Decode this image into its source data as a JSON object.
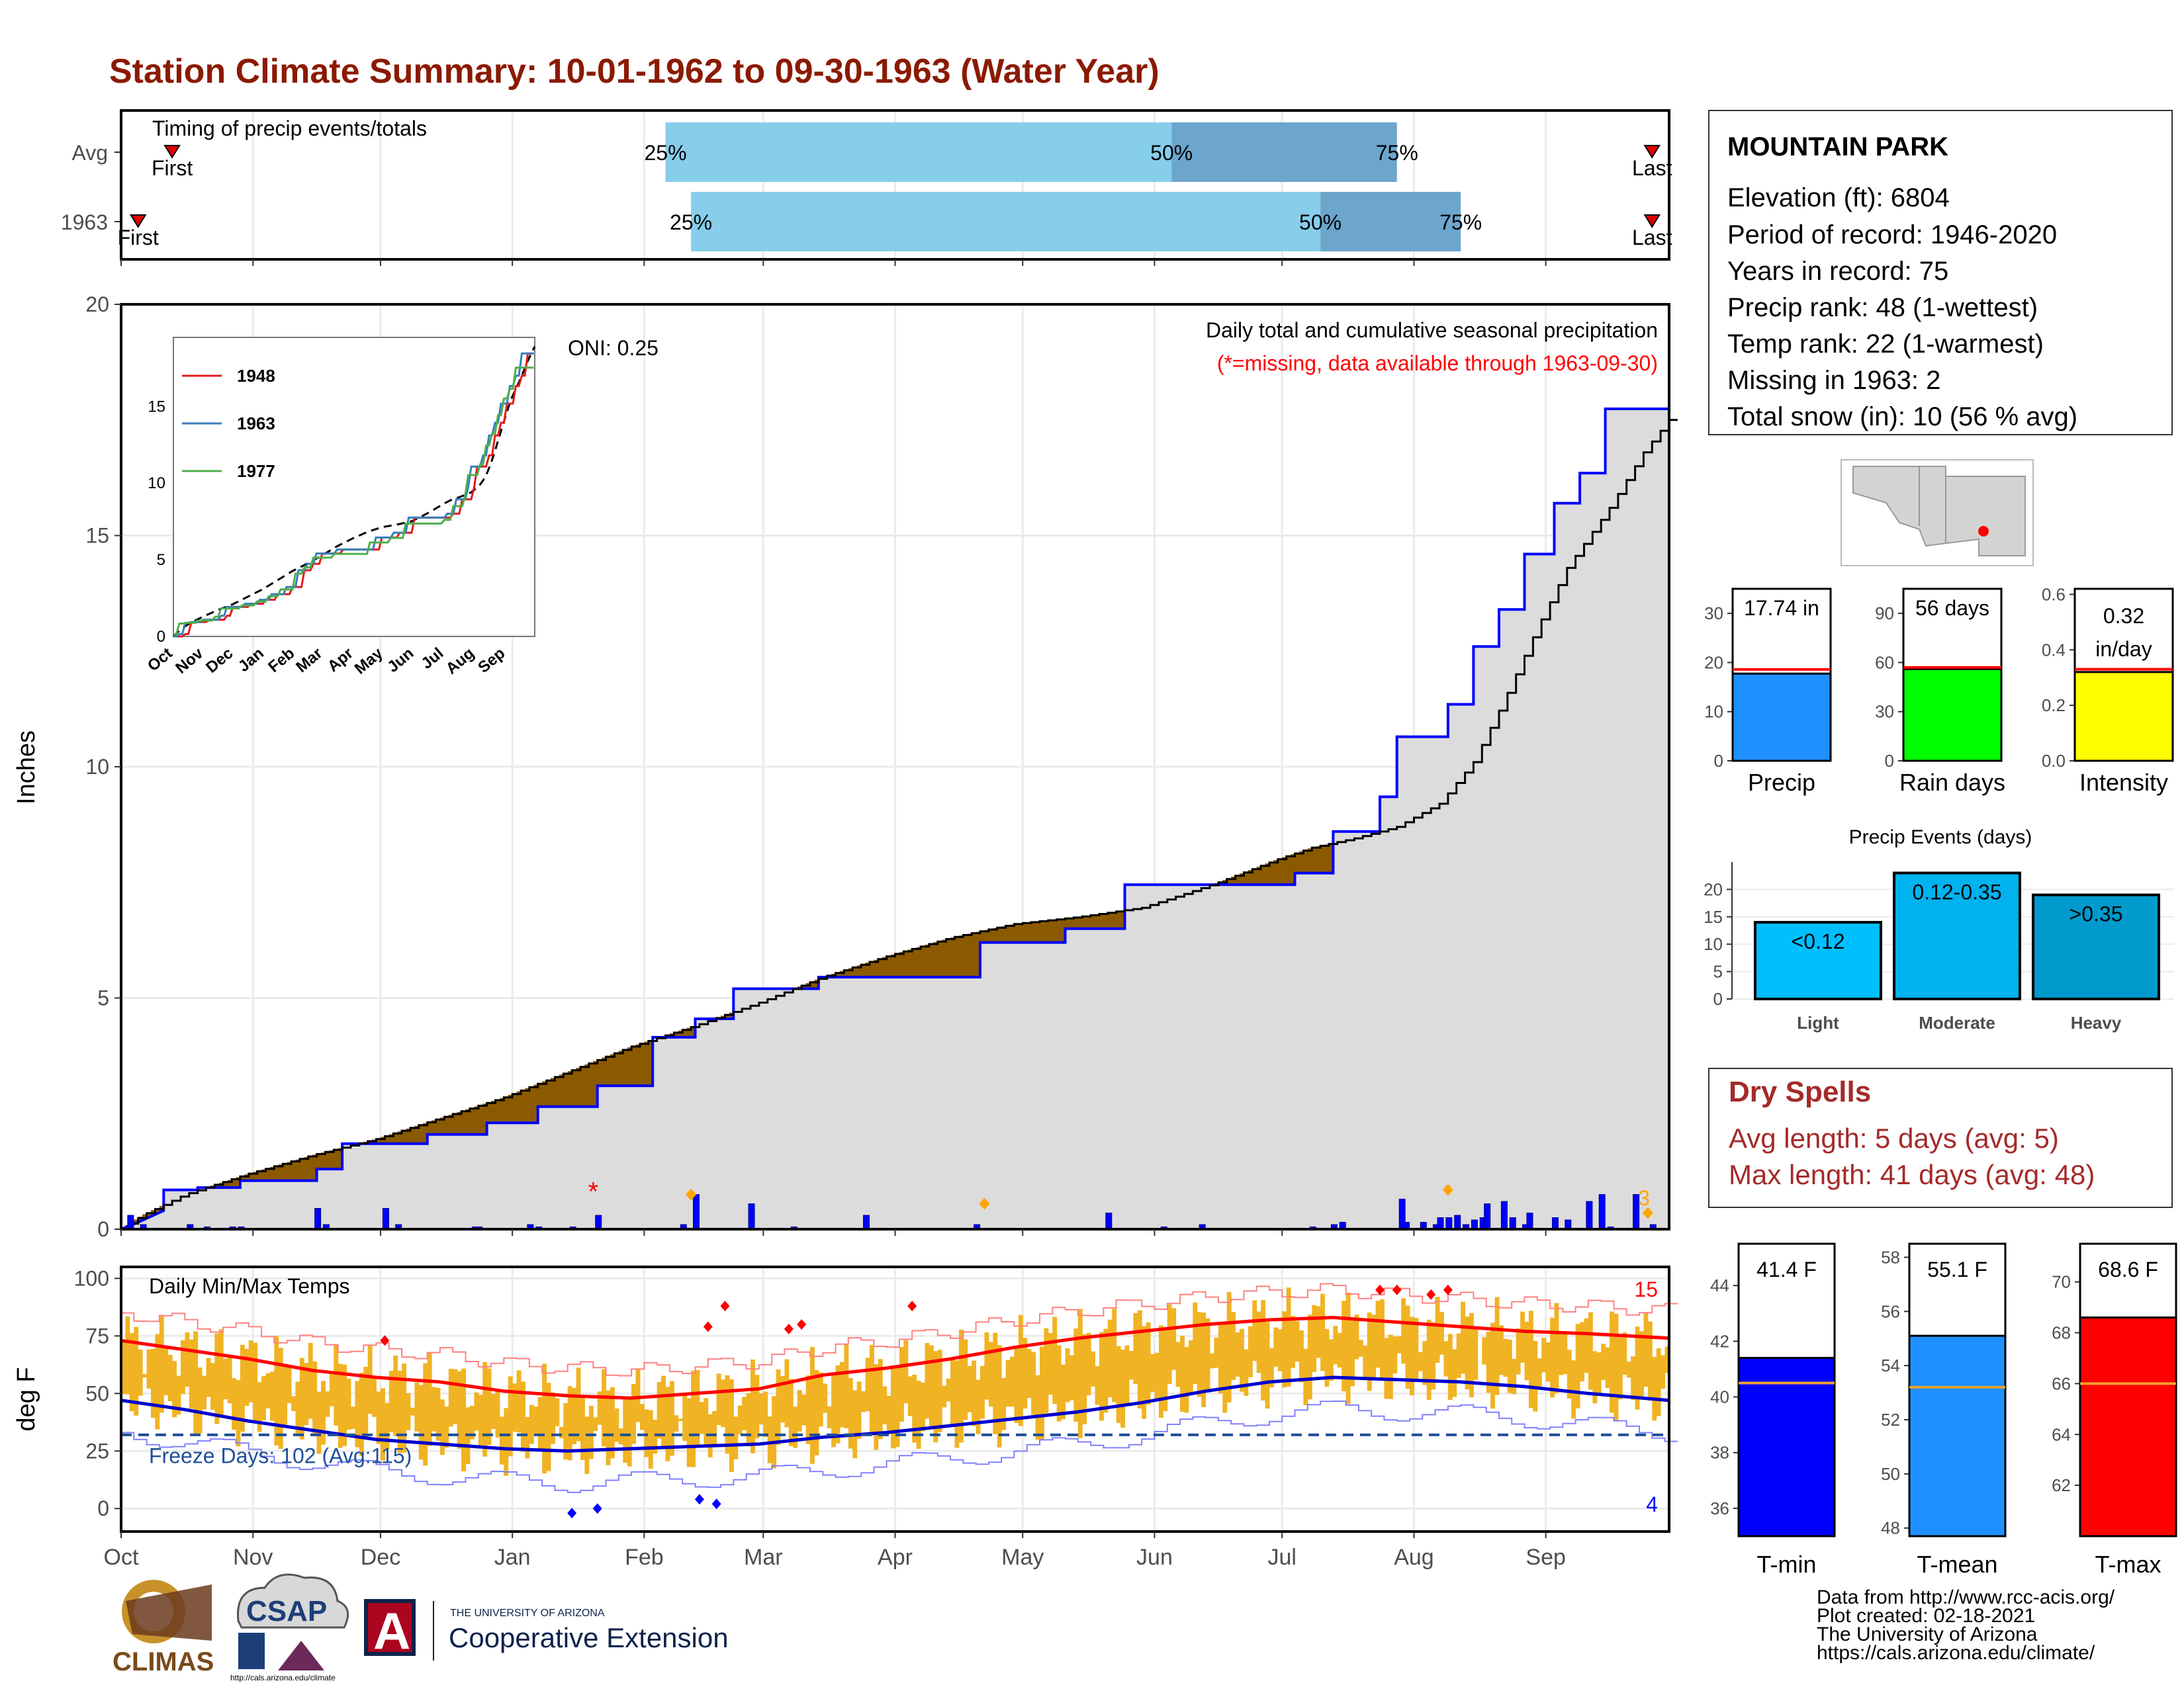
{
  "title": "Station Climate Summary: 10-01-1962 to 09-30-1963 (Water Year)",
  "colors": {
    "title": "#8b1a00",
    "light_blue": "#87ceeb",
    "mid_blue": "#6ca6cd",
    "cum_fill": "#dcdcdc",
    "cum_line": "#0000ff",
    "surplus": "#1a8f1a",
    "deficit": "#8b5a00",
    "daily_bar": "#0000ff",
    "temp_bar": "#f0b323",
    "norm_max": "#ff0000",
    "norm_min": "#0000cd",
    "freeze_line": "#1f4e99",
    "dry_spell_text": "#a52a2a"
  },
  "months": [
    "Oct",
    "Nov",
    "Dec",
    "Jan",
    "Feb",
    "Mar",
    "Apr",
    "May",
    "Jun",
    "Jul",
    "Aug",
    "Sep"
  ],
  "timing": {
    "title": "Timing of precip events/totals",
    "rows": [
      {
        "label": "Avg",
        "first_label": "First",
        "last_label": "Last",
        "first_day": 12,
        "last_day": 360,
        "p25_day": 128,
        "p50_day": 247,
        "p75_day": 300,
        "p25": "25%",
        "p50": "50%",
        "p75": "75%"
      },
      {
        "label": "1963",
        "first_label": "First",
        "last_label": "Last",
        "first_day": 4,
        "last_day": 360,
        "p25_day": 134,
        "p50_day": 282,
        "p75_day": 315,
        "p25": "25%",
        "p50": "50%",
        "p75": "75%"
      }
    ]
  },
  "precip_panel": {
    "ylabel": "Inches",
    "ylim": [
      0,
      20
    ],
    "yticks": [
      0,
      5,
      10,
      15,
      20
    ],
    "subtitle": "Daily total and cumulative seasonal precipitation",
    "missing_note": "(*=missing, data available through 1963-09-30)",
    "oni": "ONI: 0.25",
    "count_label": "3",
    "missing_marker": "*"
  },
  "inset": {
    "yticks": [
      "0",
      "5",
      "10",
      "15"
    ],
    "xticks": [
      "Oct",
      "Nov",
      "Dec",
      "Jan",
      "Feb",
      "Mar",
      "Apr",
      "May",
      "Jun",
      "Jul",
      "Aug",
      "Sep"
    ],
    "legend": [
      {
        "name": "1948",
        "color": "#e41a1c"
      },
      {
        "name": "1963",
        "color": "#377eb8"
      },
      {
        "name": "1977",
        "color": "#4daf4a"
      }
    ]
  },
  "temp_panel": {
    "title": "Daily Min/Max Temps",
    "ylabel": "deg F",
    "yticks": [
      0,
      25,
      50,
      75,
      100
    ],
    "freeze_label": "Freeze Days: 102 (Avg:115)",
    "freeze_line_value": 32,
    "max_record_count": "15",
    "min_record_count": "4"
  },
  "info_box": {
    "station": "MOUNTAIN PARK",
    "lines": [
      "Elevation (ft): 6804",
      "Period of record: 1946-2020",
      "Years in record: 75",
      "Precip rank: 48 (1-wettest)",
      "Temp rank: 22 (1-warmest)",
      "Missing in 1963: 2",
      "Total snow (in): 10 (56 % avg)"
    ]
  },
  "summary_bars": [
    {
      "id": "precip",
      "label": "Precip",
      "value": 17.74,
      "avg": 18.6,
      "ylim": [
        0,
        35
      ],
      "yticks": [
        "0",
        "10",
        "20",
        "30"
      ],
      "tick_values": [
        0,
        10,
        20,
        30
      ],
      "text1": "17.74 in",
      "text2": "",
      "color": "#1e90ff"
    },
    {
      "id": "raindays",
      "label": "Rain days",
      "value": 56,
      "avg": 57,
      "ylim": [
        0,
        105
      ],
      "yticks": [
        "0",
        "30",
        "60",
        "90"
      ],
      "tick_values": [
        0,
        30,
        60,
        90
      ],
      "text1": "56 days",
      "text2": "",
      "color": "#00ff00"
    },
    {
      "id": "intensity",
      "label": "Intensity",
      "value": 0.32,
      "avg": 0.33,
      "ylim": [
        0,
        0.62
      ],
      "yticks": [
        "0.0",
        "0.2",
        "0.4",
        "0.6"
      ],
      "tick_values": [
        0,
        0.2,
        0.4,
        0.6
      ],
      "text1": "0.32",
      "text2": "in/day",
      "color": "#ffff00"
    }
  ],
  "precip_events": {
    "title": "Precip Events (days)",
    "yticks": [
      "0",
      "5",
      "10",
      "15",
      "20"
    ],
    "tick_values": [
      0,
      5,
      10,
      15,
      20
    ],
    "bars": [
      {
        "category": "Light",
        "label": "<0.12",
        "value": 14,
        "color": "#00bfff"
      },
      {
        "category": "Moderate",
        "label": "0.12-0.35",
        "value": 23,
        "color": "#00b2ee"
      },
      {
        "category": "Heavy",
        "label": ">0.35",
        "value": 19,
        "color": "#009acd"
      }
    ]
  },
  "dry_spells": {
    "title": "Dry Spells",
    "avg_line": "Avg length: 5 days (avg: 5)",
    "max_line": "Max length: 41 days (avg: 48)"
  },
  "temp_summary": [
    {
      "id": "tmin",
      "label": "T-min",
      "value": 41.4,
      "avg": 40.5,
      "ylim": [
        35,
        45.5
      ],
      "yticks": [
        "36",
        "38",
        "40",
        "42",
        "44"
      ],
      "tick_values": [
        36,
        38,
        40,
        42,
        44
      ],
      "text": "41.4 F",
      "color": "#0000ff"
    },
    {
      "id": "tmean",
      "label": "T-mean",
      "value": 55.1,
      "avg": 53.2,
      "ylim": [
        47.7,
        58.5
      ],
      "yticks": [
        "48",
        "50",
        "52",
        "54",
        "56",
        "58"
      ],
      "tick_values": [
        48,
        50,
        52,
        54,
        56,
        58
      ],
      "text": "55.1 F",
      "color": "#1e90ff"
    },
    {
      "id": "tmax",
      "label": "T-max",
      "value": 68.6,
      "avg": 66,
      "ylim": [
        60,
        71.5
      ],
      "yticks": [
        "62",
        "64",
        "66",
        "68",
        "70"
      ],
      "tick_values": [
        62,
        64,
        66,
        68,
        70
      ],
      "text": "68.6 F",
      "color": "#ff0000"
    }
  ],
  "footer": {
    "lines": [
      "Data from http://www.rcc-acis.org/",
      "Plot created: 02-18-2021",
      "The University of Arizona",
      "https://cals.arizona.edu/climate/"
    ],
    "logos": {
      "climas": "CLIMAS",
      "csap": "CSAP",
      "csap_url": "http://cals.arizona.edu/climate",
      "ua_small": "THE UNIVERSITY OF ARIZONA",
      "ua_big": "Cooperative Extension",
      "ua_letter": "A"
    }
  },
  "chart_data": {
    "type": "area",
    "title": "Daily total and cumulative seasonal precipitation",
    "ylabel": "Inches",
    "ylim": [
      0,
      20
    ],
    "x_unit": "day of water year (0 = Oct 1)",
    "avg_cumulative": {
      "x": [
        0,
        5,
        15,
        30,
        45,
        60,
        75,
        90,
        105,
        120,
        135,
        150,
        165,
        180,
        195,
        210,
        225,
        240,
        250,
        258,
        265,
        272,
        280,
        290,
        300,
        310,
        318,
        325,
        333,
        340,
        350,
        358,
        364
      ],
      "y": [
        0,
        0.3,
        0.75,
        1.2,
        1.6,
        1.95,
        2.4,
        2.85,
        3.4,
        3.95,
        4.4,
        4.9,
        5.45,
        5.9,
        6.3,
        6.6,
        6.75,
        6.95,
        7.25,
        7.5,
        7.75,
        8.0,
        8.25,
        8.45,
        8.7,
        9.2,
        10.1,
        11.4,
        13.0,
        14.3,
        15.6,
        16.8,
        17.5
      ]
    },
    "cumulative_1963": {
      "x": [
        0,
        4,
        10,
        10,
        18,
        18,
        28,
        28,
        46,
        46,
        52,
        52,
        72,
        72,
        86,
        86,
        98,
        98,
        112,
        112,
        125,
        125,
        135,
        135,
        144,
        144,
        164,
        164,
        202,
        202,
        222,
        222,
        236,
        236,
        276,
        276,
        285,
        285,
        296,
        296,
        300,
        300,
        312,
        312,
        318,
        318,
        324,
        324,
        330,
        330,
        337,
        337,
        343,
        343,
        349,
        349,
        352,
        352,
        364
      ],
      "y": [
        0,
        0.15,
        0.4,
        0.85,
        0.85,
        0.9,
        0.9,
        1.05,
        1.05,
        1.3,
        1.3,
        1.85,
        1.85,
        2.05,
        2.05,
        2.3,
        2.3,
        2.65,
        2.65,
        3.1,
        3.1,
        4.15,
        4.15,
        4.55,
        4.55,
        5.2,
        5.2,
        5.45,
        5.45,
        6.2,
        6.2,
        6.5,
        6.5,
        7.45,
        7.45,
        7.7,
        7.7,
        8.6,
        8.6,
        9.35,
        9.35,
        10.65,
        10.65,
        11.35,
        11.35,
        12.6,
        12.6,
        13.4,
        13.4,
        14.6,
        14.6,
        15.7,
        15.7,
        16.35,
        16.35,
        17.74,
        17.74,
        17.74,
        17.74
      ]
    },
    "daily_x": [
      2,
      5,
      16,
      20,
      26,
      28,
      46,
      48,
      62,
      65,
      83,
      84,
      96,
      98,
      106,
      112,
      132,
      135,
      148,
      158,
      175,
      201,
      232,
      245,
      254,
      280,
      285,
      287,
      301,
      302,
      306,
      309,
      310,
      312,
      314,
      316,
      318,
      320,
      321,
      325,
      327,
      330,
      331,
      337,
      340,
      345,
      348,
      350,
      356,
      360
    ],
    "daily_y": [
      0.3,
      0.1,
      0.1,
      0.05,
      0.05,
      0.05,
      0.45,
      0.1,
      0.45,
      0.1,
      0.05,
      0.05,
      0.1,
      0.05,
      0.05,
      0.3,
      0.1,
      0.75,
      0.55,
      0.05,
      0.3,
      0.1,
      0.35,
      0.05,
      0.1,
      0.05,
      0.1,
      0.15,
      0.65,
      0.15,
      0.15,
      0.1,
      0.25,
      0.25,
      0.3,
      0.1,
      0.2,
      0.25,
      0.55,
      0.6,
      0.25,
      0.1,
      0.35,
      0.25,
      0.2,
      0.6,
      0.75,
      0.05,
      0.75,
      0.1
    ],
    "temps": {
      "ylim": [
        -10,
        105
      ],
      "normal_max": {
        "x": [
          0,
          15,
          30,
          45,
          60,
          75,
          90,
          105,
          120,
          135,
          150,
          165,
          180,
          195,
          210,
          225,
          240,
          255,
          270,
          285,
          300,
          315,
          330,
          345,
          364
        ],
        "y": [
          73,
          69,
          65,
          60,
          57,
          55,
          51,
          49,
          48,
          50,
          52,
          58,
          61,
          65,
          70,
          74,
          77,
          80,
          82,
          83,
          81,
          79,
          77,
          76,
          74
        ]
      },
      "normal_min": {
        "x": [
          0,
          15,
          30,
          45,
          60,
          75,
          90,
          105,
          120,
          135,
          150,
          165,
          180,
          195,
          210,
          225,
          240,
          255,
          270,
          285,
          300,
          315,
          330,
          345,
          364
        ],
        "y": [
          47,
          43,
          38,
          34,
          30,
          28,
          26,
          25,
          26,
          27,
          28,
          31,
          33,
          36,
          39,
          42,
          46,
          51,
          55,
          57,
          56,
          55,
          53,
          50,
          47
        ]
      }
    }
  }
}
